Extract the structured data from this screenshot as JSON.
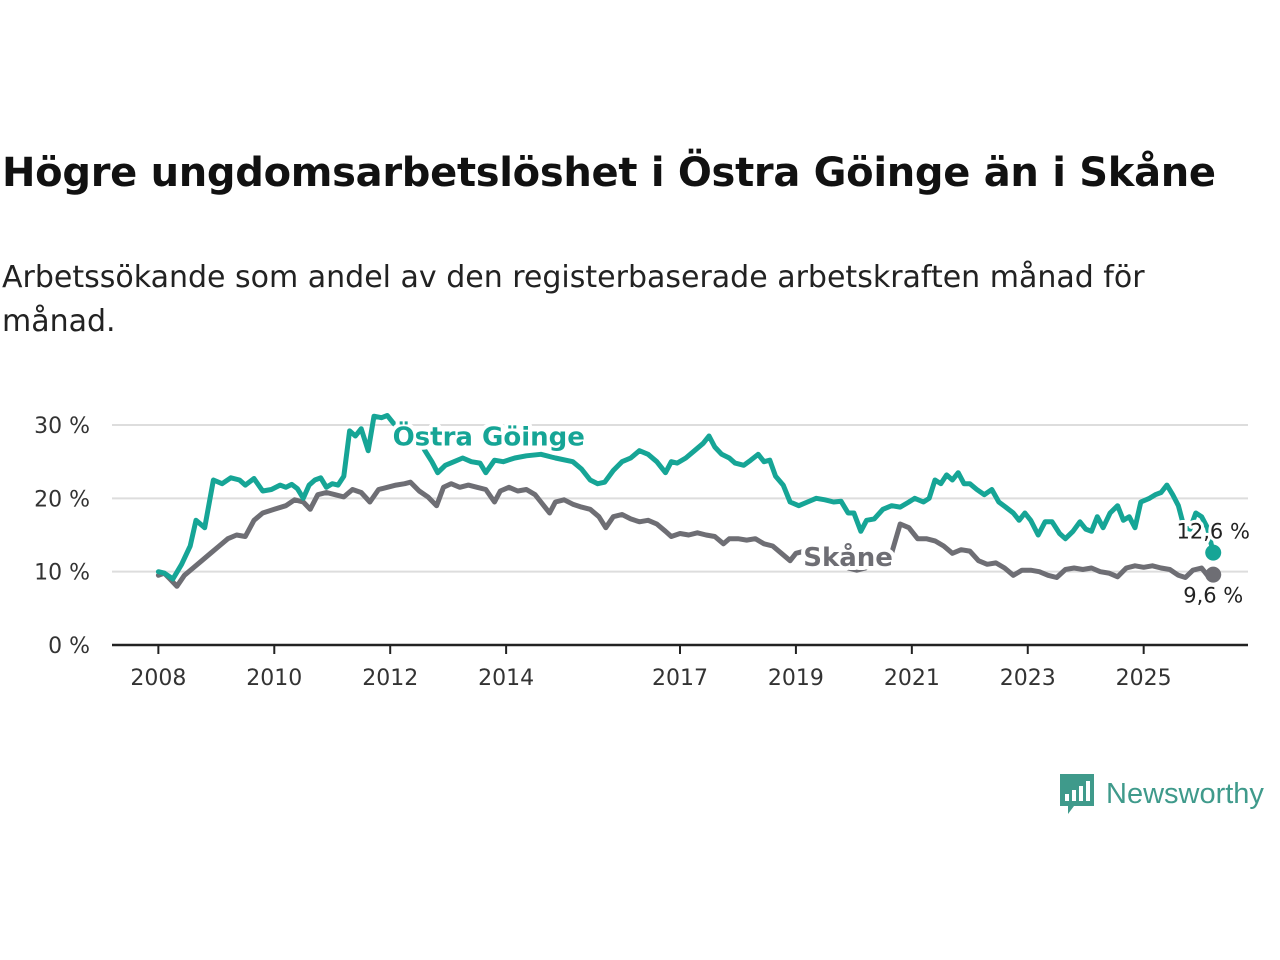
{
  "title": "Högre ungdomsarbetslöshet i Östra Göinge än i Skåne",
  "subtitle": "Arbetssökande som andel av den registerbaserade arbetskraften månad för månad.",
  "brand": {
    "name": "Newsworthy",
    "color": "#3f9a8b"
  },
  "chart_data": {
    "type": "line",
    "y_ticks": [
      "0 %",
      "10 %",
      "20 %",
      "30 %"
    ],
    "y_tick_values": [
      0,
      10,
      20,
      30
    ],
    "ylim": [
      0,
      30
    ],
    "x_ticks": [
      "2008",
      "2010",
      "2012",
      "2014",
      "2017",
      "2019",
      "2021",
      "2023",
      "2025"
    ],
    "x_tick_values": [
      2008,
      2010,
      2012,
      2014,
      2017,
      2019,
      2021,
      2023,
      2025
    ],
    "xlim": [
      2007.2,
      2026.8
    ],
    "colors": {
      "grid": "#dddddd",
      "axis": "#222222",
      "tick_text": "#333333"
    },
    "series": [
      {
        "name": "Östra Göinge",
        "color": "#16a596",
        "end_label": "12,6 %",
        "points": [
          [
            2008.0,
            10.0
          ],
          [
            2008.1,
            9.8
          ],
          [
            2008.25,
            9.0
          ],
          [
            2008.4,
            11.0
          ],
          [
            2008.55,
            13.5
          ],
          [
            2008.65,
            17.0
          ],
          [
            2008.8,
            16.0
          ],
          [
            2008.95,
            22.5
          ],
          [
            2009.1,
            22.0
          ],
          [
            2009.25,
            22.8
          ],
          [
            2009.4,
            22.5
          ],
          [
            2009.5,
            21.8
          ],
          [
            2009.65,
            22.7
          ],
          [
            2009.8,
            21.0
          ],
          [
            2009.95,
            21.2
          ],
          [
            2010.1,
            21.8
          ],
          [
            2010.2,
            21.5
          ],
          [
            2010.3,
            21.9
          ],
          [
            2010.4,
            21.3
          ],
          [
            2010.5,
            20.0
          ],
          [
            2010.6,
            21.8
          ],
          [
            2010.7,
            22.5
          ],
          [
            2010.8,
            22.8
          ],
          [
            2010.9,
            21.5
          ],
          [
            2011.0,
            22.0
          ],
          [
            2011.1,
            21.8
          ],
          [
            2011.2,
            23.0
          ],
          [
            2011.3,
            29.2
          ],
          [
            2011.4,
            28.5
          ],
          [
            2011.5,
            29.5
          ],
          [
            2011.62,
            26.5
          ],
          [
            2011.72,
            31.2
          ],
          [
            2011.85,
            31.0
          ],
          [
            2011.95,
            31.3
          ],
          [
            2012.05,
            30.3
          ],
          [
            2012.15,
            29.5
          ],
          [
            2012.28,
            30.3
          ],
          [
            2012.38,
            27.5
          ],
          [
            2012.5,
            28.0
          ],
          [
            2012.6,
            26.5
          ],
          [
            2012.72,
            25.0
          ],
          [
            2012.82,
            23.5
          ],
          [
            2012.95,
            24.5
          ],
          [
            2013.1,
            25.0
          ],
          [
            2013.25,
            25.5
          ],
          [
            2013.4,
            25.0
          ],
          [
            2013.55,
            24.8
          ],
          [
            2013.65,
            23.5
          ],
          [
            2013.8,
            25.2
          ],
          [
            2013.95,
            25.0
          ],
          [
            2014.15,
            25.5
          ],
          [
            2014.35,
            25.8
          ],
          [
            2014.6,
            26.0
          ],
          [
            2014.85,
            25.5
          ],
          [
            2015.15,
            25.0
          ],
          [
            2015.3,
            24.0
          ],
          [
            2015.45,
            22.5
          ],
          [
            2015.58,
            22.0
          ],
          [
            2015.7,
            22.2
          ],
          [
            2015.85,
            23.8
          ],
          [
            2016.0,
            25.0
          ],
          [
            2016.15,
            25.5
          ],
          [
            2016.3,
            26.5
          ],
          [
            2016.45,
            26.0
          ],
          [
            2016.6,
            25.0
          ],
          [
            2016.75,
            23.5
          ],
          [
            2016.85,
            25.0
          ],
          [
            2016.95,
            24.8
          ],
          [
            2017.1,
            25.5
          ],
          [
            2017.25,
            26.5
          ],
          [
            2017.4,
            27.5
          ],
          [
            2017.5,
            28.5
          ],
          [
            2017.6,
            27.0
          ],
          [
            2017.72,
            26.0
          ],
          [
            2017.85,
            25.5
          ],
          [
            2017.95,
            24.8
          ],
          [
            2018.1,
            24.5
          ],
          [
            2018.22,
            25.2
          ],
          [
            2018.35,
            26.0
          ],
          [
            2018.45,
            25.0
          ],
          [
            2018.55,
            25.2
          ],
          [
            2018.65,
            23.0
          ],
          [
            2018.78,
            21.8
          ],
          [
            2018.9,
            19.5
          ],
          [
            2019.05,
            19.0
          ],
          [
            2019.2,
            19.5
          ],
          [
            2019.35,
            20.0
          ],
          [
            2019.5,
            19.8
          ],
          [
            2019.65,
            19.5
          ],
          [
            2019.78,
            19.6
          ],
          [
            2019.9,
            18.0
          ],
          [
            2020.0,
            18.0
          ],
          [
            2020.12,
            15.5
          ],
          [
            2020.22,
            17.0
          ],
          [
            2020.35,
            17.2
          ],
          [
            2020.5,
            18.5
          ],
          [
            2020.65,
            19.0
          ],
          [
            2020.8,
            18.8
          ],
          [
            2020.95,
            19.5
          ],
          [
            2021.05,
            20.0
          ],
          [
            2021.2,
            19.5
          ],
          [
            2021.3,
            20.0
          ],
          [
            2021.4,
            22.5
          ],
          [
            2021.5,
            22.0
          ],
          [
            2021.6,
            23.2
          ],
          [
            2021.7,
            22.5
          ],
          [
            2021.8,
            23.5
          ],
          [
            2021.9,
            22.0
          ],
          [
            2022.0,
            22.0
          ],
          [
            2022.12,
            21.2
          ],
          [
            2022.25,
            20.5
          ],
          [
            2022.38,
            21.2
          ],
          [
            2022.5,
            19.5
          ],
          [
            2022.62,
            18.8
          ],
          [
            2022.75,
            18.0
          ],
          [
            2022.85,
            17.0
          ],
          [
            2022.95,
            18.0
          ],
          [
            2023.05,
            17.0
          ],
          [
            2023.18,
            15.0
          ],
          [
            2023.3,
            16.8
          ],
          [
            2023.42,
            16.8
          ],
          [
            2023.55,
            15.2
          ],
          [
            2023.65,
            14.5
          ],
          [
            2023.78,
            15.5
          ],
          [
            2023.9,
            16.8
          ],
          [
            2024.0,
            15.8
          ],
          [
            2024.1,
            15.5
          ],
          [
            2024.2,
            17.5
          ],
          [
            2024.3,
            16.0
          ],
          [
            2024.42,
            18.0
          ],
          [
            2024.55,
            19.0
          ],
          [
            2024.65,
            17.0
          ],
          [
            2024.75,
            17.5
          ],
          [
            2024.85,
            16.0
          ],
          [
            2024.95,
            19.5
          ],
          [
            2025.1,
            20.0
          ],
          [
            2025.2,
            20.5
          ],
          [
            2025.3,
            20.8
          ],
          [
            2025.4,
            21.8
          ],
          [
            2025.5,
            20.5
          ],
          [
            2025.6,
            19.0
          ],
          [
            2025.7,
            16.0
          ],
          [
            2025.8,
            15.8
          ],
          [
            2025.9,
            18.0
          ],
          [
            2026.0,
            17.5
          ],
          [
            2026.1,
            16.0
          ],
          [
            2026.2,
            12.6
          ]
        ]
      },
      {
        "name": "Skåne",
        "color": "#6e6e74",
        "end_label": "9,6 %",
        "points": [
          [
            2008.0,
            9.5
          ],
          [
            2008.1,
            9.8
          ],
          [
            2008.2,
            9.0
          ],
          [
            2008.32,
            8.0
          ],
          [
            2008.45,
            9.5
          ],
          [
            2008.6,
            10.5
          ],
          [
            2008.75,
            11.5
          ],
          [
            2008.9,
            12.5
          ],
          [
            2009.05,
            13.5
          ],
          [
            2009.2,
            14.5
          ],
          [
            2009.35,
            15.0
          ],
          [
            2009.5,
            14.8
          ],
          [
            2009.65,
            17.0
          ],
          [
            2009.8,
            18.0
          ],
          [
            2010.0,
            18.5
          ],
          [
            2010.2,
            19.0
          ],
          [
            2010.35,
            19.8
          ],
          [
            2010.5,
            19.5
          ],
          [
            2010.62,
            18.5
          ],
          [
            2010.75,
            20.5
          ],
          [
            2010.9,
            20.8
          ],
          [
            2011.05,
            20.5
          ],
          [
            2011.2,
            20.2
          ],
          [
            2011.35,
            21.2
          ],
          [
            2011.5,
            20.8
          ],
          [
            2011.65,
            19.5
          ],
          [
            2011.8,
            21.2
          ],
          [
            2011.95,
            21.5
          ],
          [
            2012.1,
            21.8
          ],
          [
            2012.25,
            22.0
          ],
          [
            2012.35,
            22.2
          ],
          [
            2012.5,
            21.0
          ],
          [
            2012.65,
            20.2
          ],
          [
            2012.8,
            19.0
          ],
          [
            2012.92,
            21.5
          ],
          [
            2013.05,
            22.0
          ],
          [
            2013.2,
            21.5
          ],
          [
            2013.35,
            21.8
          ],
          [
            2013.5,
            21.5
          ],
          [
            2013.65,
            21.2
          ],
          [
            2013.8,
            19.5
          ],
          [
            2013.9,
            21.0
          ],
          [
            2014.05,
            21.5
          ],
          [
            2014.2,
            21.0
          ],
          [
            2014.35,
            21.2
          ],
          [
            2014.5,
            20.5
          ],
          [
            2014.6,
            19.5
          ],
          [
            2014.75,
            18.0
          ],
          [
            2014.85,
            19.5
          ],
          [
            2015.0,
            19.8
          ],
          [
            2015.15,
            19.2
          ],
          [
            2015.3,
            18.8
          ],
          [
            2015.45,
            18.5
          ],
          [
            2015.6,
            17.5
          ],
          [
            2015.72,
            16.0
          ],
          [
            2015.85,
            17.5
          ],
          [
            2016.0,
            17.8
          ],
          [
            2016.15,
            17.2
          ],
          [
            2016.3,
            16.8
          ],
          [
            2016.45,
            17.0
          ],
          [
            2016.6,
            16.5
          ],
          [
            2016.75,
            15.5
          ],
          [
            2016.85,
            14.8
          ],
          [
            2017.0,
            15.2
          ],
          [
            2017.15,
            15.0
          ],
          [
            2017.3,
            15.3
          ],
          [
            2017.45,
            15.0
          ],
          [
            2017.6,
            14.8
          ],
          [
            2017.75,
            13.8
          ],
          [
            2017.85,
            14.5
          ],
          [
            2018.0,
            14.5
          ],
          [
            2018.15,
            14.3
          ],
          [
            2018.3,
            14.5
          ],
          [
            2018.45,
            13.8
          ],
          [
            2018.6,
            13.5
          ],
          [
            2018.75,
            12.5
          ],
          [
            2018.9,
            11.5
          ],
          [
            2019.0,
            12.5
          ],
          [
            2019.15,
            12.8
          ],
          [
            2019.3,
            12.0
          ],
          [
            2019.45,
            12.3
          ],
          [
            2019.6,
            12.0
          ],
          [
            2019.75,
            11.5
          ],
          [
            2019.9,
            10.5
          ],
          [
            2020.05,
            10.2
          ],
          [
            2020.2,
            10.5
          ],
          [
            2020.35,
            11.0
          ],
          [
            2020.5,
            11.5
          ],
          [
            2020.65,
            12.5
          ],
          [
            2020.8,
            16.5
          ],
          [
            2020.95,
            16.0
          ],
          [
            2021.1,
            14.5
          ],
          [
            2021.25,
            14.5
          ],
          [
            2021.4,
            14.2
          ],
          [
            2021.55,
            13.5
          ],
          [
            2021.7,
            12.5
          ],
          [
            2021.85,
            13.0
          ],
          [
            2022.0,
            12.8
          ],
          [
            2022.15,
            11.5
          ],
          [
            2022.3,
            11.0
          ],
          [
            2022.45,
            11.2
          ],
          [
            2022.6,
            10.5
          ],
          [
            2022.75,
            9.5
          ],
          [
            2022.9,
            10.2
          ],
          [
            2023.05,
            10.2
          ],
          [
            2023.2,
            10.0
          ],
          [
            2023.35,
            9.5
          ],
          [
            2023.5,
            9.2
          ],
          [
            2023.65,
            10.3
          ],
          [
            2023.8,
            10.5
          ],
          [
            2023.95,
            10.3
          ],
          [
            2024.1,
            10.5
          ],
          [
            2024.25,
            10.0
          ],
          [
            2024.4,
            9.8
          ],
          [
            2024.55,
            9.3
          ],
          [
            2024.7,
            10.5
          ],
          [
            2024.85,
            10.8
          ],
          [
            2025.0,
            10.6
          ],
          [
            2025.15,
            10.8
          ],
          [
            2025.3,
            10.5
          ],
          [
            2025.45,
            10.3
          ],
          [
            2025.6,
            9.5
          ],
          [
            2025.72,
            9.2
          ],
          [
            2025.85,
            10.2
          ],
          [
            2026.0,
            10.5
          ],
          [
            2026.1,
            9.5
          ],
          [
            2026.2,
            9.6
          ]
        ]
      }
    ]
  }
}
